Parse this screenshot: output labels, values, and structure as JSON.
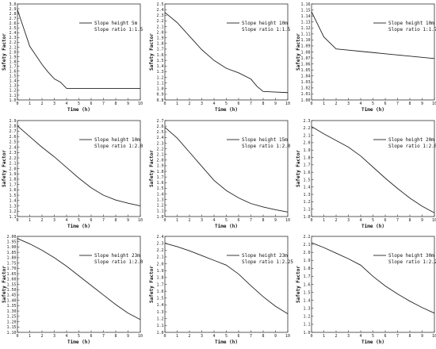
{
  "chart_data": [
    {
      "type": "line",
      "xlabel": "Time (h)",
      "ylabel": "Safety Factor",
      "xlim": [
        0,
        10
      ],
      "ylim": [
        1.0,
        3.0
      ],
      "xticks": [
        "0",
        "1",
        "2",
        "3",
        "4",
        "5",
        "6",
        "7",
        "8",
        "9",
        "10"
      ],
      "yticks": [
        "1.0",
        "1.1",
        "1.2",
        "1.3",
        "1.4",
        "1.5",
        "1.6",
        "1.7",
        "1.8",
        "1.9",
        "2.0",
        "2.1",
        "2.2",
        "2.3",
        "2.4",
        "2.5",
        "2.6",
        "2.7",
        "2.8",
        "2.9",
        "3.0"
      ],
      "legend": [
        "Slope height 5m",
        "Slope ratio 1:1.5"
      ],
      "legend_position": "top-right",
      "x": [
        0,
        0.5,
        1,
        1.5,
        2,
        2.5,
        3,
        3.5,
        4,
        5,
        6,
        7,
        8,
        9,
        10
      ],
      "y": [
        2.88,
        2.5,
        2.12,
        1.93,
        1.74,
        1.58,
        1.44,
        1.37,
        1.24,
        1.24,
        1.24,
        1.24,
        1.24,
        1.24,
        1.24
      ]
    },
    {
      "type": "line",
      "xlabel": "Time (h)",
      "ylabel": "Safety Factor",
      "xlim": [
        0,
        10
      ],
      "ylim": [
        0.8,
        2.5
      ],
      "xticks": [
        "0",
        "1",
        "2",
        "3",
        "4",
        "5",
        "6",
        "7",
        "8",
        "9",
        "10"
      ],
      "yticks": [
        "0.8",
        "0.9",
        "1.0",
        "1.1",
        "1.2",
        "1.3",
        "1.4",
        "1.5",
        "1.6",
        "1.7",
        "1.8",
        "1.9",
        "2.0",
        "2.1",
        "2.2",
        "2.3",
        "2.4",
        "2.5"
      ],
      "legend": [
        "Slope height 10m",
        "Slope ratio 1:1.5"
      ],
      "legend_position": "top-right",
      "x": [
        0,
        1,
        2,
        3,
        4,
        5,
        6,
        7,
        7.5,
        8,
        9,
        10
      ],
      "y": [
        2.35,
        2.17,
        1.93,
        1.69,
        1.5,
        1.36,
        1.28,
        1.17,
        1.04,
        0.95,
        0.94,
        0.93
      ]
    },
    {
      "type": "line",
      "xlabel": "Time (h)",
      "ylabel": "Safety Factor",
      "xlim": [
        0,
        10
      ],
      "ylim": [
        1.0,
        1.16
      ],
      "xticks": [
        "0",
        "1",
        "2",
        "3",
        "4",
        "5",
        "6",
        "7",
        "8",
        "9",
        "10"
      ],
      "yticks": [
        "1.00",
        "1.01",
        "1.02",
        "1.03",
        "1.04",
        "1.05",
        "1.06",
        "1.07",
        "1.08",
        "1.09",
        "1.10",
        "1.11",
        "1.12",
        "1.13",
        "1.14",
        "1.15",
        "1.16"
      ],
      "legend": [
        "Slope height 10m",
        "Slope ratio 1:1.75"
      ],
      "legend_position": "top-right",
      "x": [
        0,
        1,
        2,
        3,
        4,
        5,
        6,
        7,
        8,
        9,
        10
      ],
      "y": [
        1.147,
        1.105,
        1.085,
        1.083,
        1.081,
        1.079,
        1.077,
        1.075,
        1.073,
        1.071,
        1.069
      ]
    },
    {
      "type": "line",
      "xlabel": "Time (h)",
      "ylabel": "Safety Factor",
      "xlim": [
        0,
        10
      ],
      "ylim": [
        1.1,
        2.9
      ],
      "xticks": [
        "0",
        "1",
        "2",
        "3",
        "4",
        "5",
        "6",
        "7",
        "8",
        "9",
        "10"
      ],
      "yticks": [
        "1.1",
        "1.2",
        "1.3",
        "1.4",
        "1.5",
        "1.6",
        "1.7",
        "1.8",
        "1.9",
        "2.0",
        "2.1",
        "2.2",
        "2.3",
        "2.4",
        "2.5",
        "2.6",
        "2.7",
        "2.8",
        "2.9"
      ],
      "legend": [
        "Slope height 10m",
        "Slope ratio 1:2.0"
      ],
      "legend_position": "top-right",
      "x": [
        0,
        1,
        2,
        3,
        4,
        5,
        6,
        7,
        8,
        9,
        10
      ],
      "y": [
        2.8,
        2.6,
        2.4,
        2.22,
        2.02,
        1.82,
        1.64,
        1.5,
        1.41,
        1.35,
        1.3
      ]
    },
    {
      "type": "line",
      "xlabel": "Time (h)",
      "ylabel": "Safety Factor",
      "xlim": [
        0,
        10
      ],
      "ylim": [
        1.0,
        2.7
      ],
      "xticks": [
        "0",
        "1",
        "2",
        "3",
        "4",
        "5",
        "6",
        "7",
        "8",
        "9",
        "10"
      ],
      "yticks": [
        "1.0",
        "1.1",
        "1.2",
        "1.3",
        "1.4",
        "1.5",
        "1.6",
        "1.7",
        "1.8",
        "1.9",
        "2.0",
        "2.1",
        "2.2",
        "2.3",
        "2.4",
        "2.5",
        "2.6",
        "2.7"
      ],
      "legend": [
        "Slope height 15m",
        "Slope ratio 1:2.0"
      ],
      "legend_position": "top-right",
      "x": [
        0,
        1,
        2,
        3,
        4,
        5,
        6,
        7,
        8,
        9,
        10
      ],
      "y": [
        2.58,
        2.39,
        2.14,
        1.89,
        1.64,
        1.46,
        1.33,
        1.23,
        1.17,
        1.12,
        1.08
      ]
    },
    {
      "type": "line",
      "xlabel": "Time (h)",
      "ylabel": "Safety Factor",
      "xlim": [
        0,
        10
      ],
      "ylim": [
        1.0,
        2.3
      ],
      "xticks": [
        "0",
        "1",
        "2",
        "3",
        "4",
        "5",
        "6",
        "7",
        "8",
        "9",
        "10"
      ],
      "yticks": [
        "1.0",
        "1.1",
        "1.2",
        "1.3",
        "1.4",
        "1.5",
        "1.6",
        "1.7",
        "1.8",
        "1.9",
        "2.0",
        "2.1",
        "2.2",
        "2.3"
      ],
      "legend": [
        "Slope height 20m",
        "Slope ratio 1:2.0"
      ],
      "legend_position": "top-right",
      "x": [
        0,
        1,
        2,
        3,
        4,
        5,
        6,
        7,
        8,
        9,
        10
      ],
      "y": [
        2.22,
        2.12,
        2.03,
        1.94,
        1.82,
        1.67,
        1.52,
        1.38,
        1.25,
        1.14,
        1.05
      ]
    },
    {
      "type": "line",
      "xlabel": "Time (h)",
      "ylabel": "Safety Factor",
      "xlim": [
        0,
        10
      ],
      "ylim": [
        1.1,
        2.0
      ],
      "xticks": [
        "0",
        "1",
        "2",
        "3",
        "4",
        "5",
        "6",
        "7",
        "8",
        "9",
        "10"
      ],
      "yticks": [
        "1.10",
        "1.15",
        "1.20",
        "1.25",
        "1.30",
        "1.35",
        "1.40",
        "1.45",
        "1.50",
        "1.55",
        "1.60",
        "1.65",
        "1.70",
        "1.75",
        "1.80",
        "1.85",
        "1.90",
        "1.95",
        "2.00"
      ],
      "legend": [
        "Slope height 23m",
        "Slope ratio 1:2.0"
      ],
      "legend_position": "top-right",
      "x": [
        0,
        1,
        2,
        3,
        4,
        5,
        6,
        7,
        8,
        9,
        10
      ],
      "y": [
        1.98,
        1.93,
        1.87,
        1.8,
        1.72,
        1.63,
        1.54,
        1.45,
        1.36,
        1.28,
        1.22
      ]
    },
    {
      "type": "line",
      "xlabel": "Time (h)",
      "ylabel": "Safety Factor",
      "xlim": [
        0,
        10
      ],
      "ylim": [
        1.0,
        2.4
      ],
      "xticks": [
        "0",
        "1",
        "2",
        "3",
        "4",
        "5",
        "6",
        "7",
        "8",
        "9",
        "10"
      ],
      "yticks": [
        "1.0",
        "1.1",
        "1.2",
        "1.3",
        "1.4",
        "1.5",
        "1.6",
        "1.7",
        "1.8",
        "1.9",
        "2.0",
        "2.1",
        "2.2",
        "2.3",
        "2.4"
      ],
      "legend": [
        "Slope height 23m",
        "Slope ratio 1:2.25"
      ],
      "legend_position": "top-right",
      "x": [
        0,
        1,
        2,
        3,
        4,
        5,
        6,
        7,
        8,
        9,
        10
      ],
      "y": [
        2.3,
        2.25,
        2.19,
        2.12,
        2.05,
        1.98,
        1.85,
        1.68,
        1.52,
        1.38,
        1.27
      ]
    },
    {
      "type": "line",
      "xlabel": "Time (h)",
      "ylabel": "Safety Factor",
      "xlim": [
        0,
        10
      ],
      "ylim": [
        1.0,
        2.2
      ],
      "xticks": [
        "0",
        "1",
        "2",
        "3",
        "4",
        "5",
        "6",
        "7",
        "8",
        "9",
        "10"
      ],
      "yticks": [
        "1.0",
        "1.1",
        "1.2",
        "1.3",
        "1.4",
        "1.5",
        "1.6",
        "1.7",
        "1.8",
        "1.9",
        "2.0",
        "2.1",
        "2.2"
      ],
      "legend": [
        "Slope height 30m",
        "Slope ratio 1:2.25"
      ],
      "legend_position": "top-right",
      "x": [
        0,
        1,
        2,
        3,
        4,
        5,
        6,
        7,
        8,
        9,
        10
      ],
      "y": [
        2.12,
        2.06,
        1.99,
        1.92,
        1.84,
        1.7,
        1.58,
        1.48,
        1.39,
        1.31,
        1.24
      ]
    }
  ]
}
